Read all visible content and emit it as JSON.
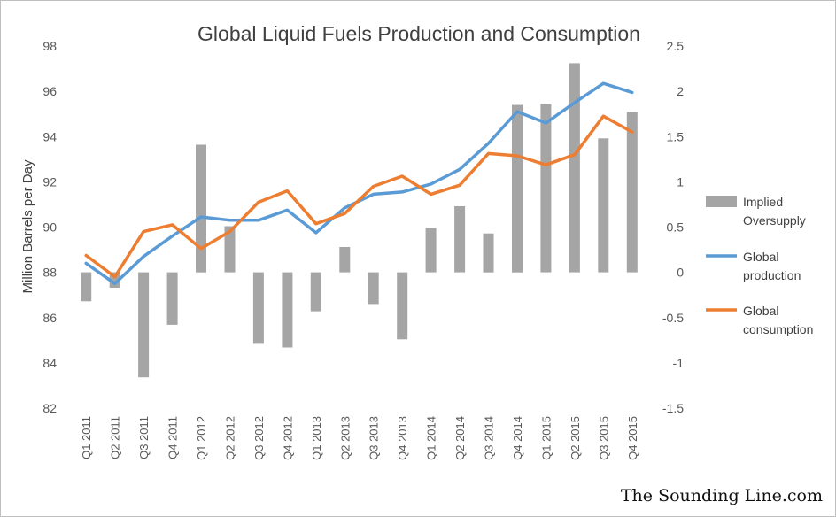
{
  "chart_data": {
    "type": "bar+line",
    "title": "Global Liquid Fuels Production and Consumption",
    "ylabel": "Million Barrels per Day",
    "ylim": [
      82,
      98
    ],
    "y_ticks": [
      82,
      84,
      86,
      88,
      90,
      92,
      94,
      96,
      98
    ],
    "y2lim": [
      -1.5,
      2.5
    ],
    "y2_ticks": [
      "2.5",
      "2",
      "1.5",
      "1",
      "0.5",
      "0",
      "-0.5",
      "-1",
      "-1.5"
    ],
    "categories": [
      "Q1 2011",
      "Q2 2011",
      "Q3 2011",
      "Q4 2011",
      "Q1 2012",
      "Q2 2012",
      "Q3 2012",
      "Q4 2012",
      "Q1 2013",
      "Q2 2013",
      "Q3 2013",
      "Q4 2013",
      "Q1 2014",
      "Q2 2014",
      "Q3 2014",
      "Q4 2014",
      "Q1 2015",
      "Q2 2015",
      "Q3 2015",
      "Q4 2015"
    ],
    "grid": false,
    "legend_position": "right",
    "series": [
      {
        "name": "Implied Oversupply",
        "type": "bar",
        "axis": "secondary",
        "color": "#a5a5a5",
        "values": [
          -0.32,
          -0.17,
          -1.16,
          -0.58,
          1.41,
          0.51,
          -0.79,
          -0.83,
          -0.43,
          0.28,
          -0.35,
          -0.74,
          0.49,
          0.73,
          0.43,
          1.85,
          1.86,
          2.31,
          1.48,
          1.77
        ]
      },
      {
        "name": "Global production",
        "type": "line",
        "axis": "primary",
        "color": "#5b9bd5",
        "values": [
          88.4,
          87.5,
          88.7,
          89.6,
          90.45,
          90.3,
          90.3,
          90.75,
          89.75,
          90.85,
          91.45,
          91.55,
          91.9,
          92.55,
          93.7,
          95.1,
          94.6,
          95.5,
          96.35,
          95.95
        ]
      },
      {
        "name": "Global consumption",
        "type": "line",
        "axis": "primary",
        "color": "#ed7d31",
        "values": [
          88.75,
          87.8,
          89.8,
          90.1,
          89.05,
          89.8,
          91.1,
          91.6,
          90.15,
          90.6,
          91.8,
          92.25,
          91.45,
          91.85,
          93.25,
          93.15,
          92.75,
          93.2,
          94.9,
          94.2
        ]
      }
    ],
    "legend": [
      {
        "lines": [
          "Implied",
          "Oversupply"
        ],
        "color": "#a5a5a5",
        "kind": "bar"
      },
      {
        "lines": [
          "Global",
          "production"
        ],
        "color": "#5b9bd5",
        "kind": "line"
      },
      {
        "lines": [
          "Global",
          "consumption"
        ],
        "color": "#ed7d31",
        "kind": "line"
      }
    ]
  },
  "credit": "The Sounding Line.com"
}
